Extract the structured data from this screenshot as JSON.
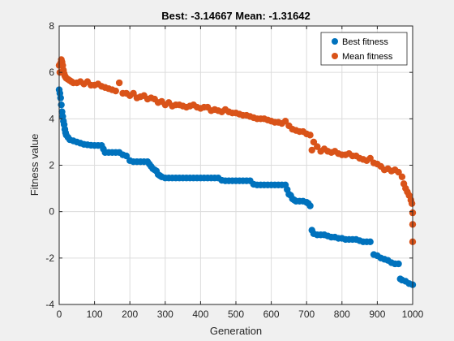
{
  "chart_data": {
    "type": "scatter",
    "title": "Best: -3.14667 Mean: -1.31642",
    "xlabel": "Generation",
    "ylabel": "Fitness value",
    "xlim": [
      0,
      1000
    ],
    "ylim": [
      -4,
      8
    ],
    "xticks": [
      0,
      100,
      200,
      300,
      400,
      500,
      600,
      700,
      800,
      900,
      1000
    ],
    "yticks": [
      -4,
      -2,
      0,
      2,
      4,
      6,
      8
    ],
    "grid": true,
    "legend_position": "top-right",
    "series": [
      {
        "name": "Best fitness",
        "color": "#0072BD",
        "points": [
          [
            0,
            5.25
          ],
          [
            2,
            5.1
          ],
          [
            4,
            4.9
          ],
          [
            6,
            4.6
          ],
          [
            8,
            4.3
          ],
          [
            10,
            4.1
          ],
          [
            12,
            3.9
          ],
          [
            14,
            3.75
          ],
          [
            16,
            3.55
          ],
          [
            18,
            3.4
          ],
          [
            20,
            3.3
          ],
          [
            25,
            3.2
          ],
          [
            30,
            3.1
          ],
          [
            40,
            3.05
          ],
          [
            50,
            3.0
          ],
          [
            60,
            2.95
          ],
          [
            70,
            2.9
          ],
          [
            80,
            2.88
          ],
          [
            90,
            2.86
          ],
          [
            100,
            2.85
          ],
          [
            110,
            2.85
          ],
          [
            120,
            2.85
          ],
          [
            125,
            2.7
          ],
          [
            130,
            2.55
          ],
          [
            140,
            2.55
          ],
          [
            150,
            2.55
          ],
          [
            160,
            2.55
          ],
          [
            170,
            2.55
          ],
          [
            180,
            2.45
          ],
          [
            190,
            2.4
          ],
          [
            200,
            2.2
          ],
          [
            210,
            2.15
          ],
          [
            220,
            2.15
          ],
          [
            230,
            2.15
          ],
          [
            240,
            2.15
          ],
          [
            250,
            2.15
          ],
          [
            255,
            2.05
          ],
          [
            260,
            1.95
          ],
          [
            265,
            1.85
          ],
          [
            270,
            1.8
          ],
          [
            275,
            1.75
          ],
          [
            280,
            1.6
          ],
          [
            285,
            1.55
          ],
          [
            290,
            1.5
          ],
          [
            300,
            1.45
          ],
          [
            310,
            1.45
          ],
          [
            320,
            1.45
          ],
          [
            330,
            1.45
          ],
          [
            340,
            1.45
          ],
          [
            350,
            1.45
          ],
          [
            360,
            1.45
          ],
          [
            370,
            1.45
          ],
          [
            380,
            1.45
          ],
          [
            390,
            1.45
          ],
          [
            400,
            1.45
          ],
          [
            410,
            1.45
          ],
          [
            420,
            1.45
          ],
          [
            430,
            1.45
          ],
          [
            440,
            1.45
          ],
          [
            450,
            1.45
          ],
          [
            460,
            1.35
          ],
          [
            470,
            1.33
          ],
          [
            480,
            1.33
          ],
          [
            490,
            1.33
          ],
          [
            500,
            1.33
          ],
          [
            510,
            1.33
          ],
          [
            520,
            1.33
          ],
          [
            530,
            1.33
          ],
          [
            540,
            1.33
          ],
          [
            550,
            1.18
          ],
          [
            560,
            1.15
          ],
          [
            570,
            1.15
          ],
          [
            580,
            1.15
          ],
          [
            590,
            1.15
          ],
          [
            600,
            1.15
          ],
          [
            610,
            1.15
          ],
          [
            620,
            1.15
          ],
          [
            630,
            1.15
          ],
          [
            640,
            1.15
          ],
          [
            645,
            0.95
          ],
          [
            650,
            0.75
          ],
          [
            655,
            0.7
          ],
          [
            660,
            0.55
          ],
          [
            665,
            0.5
          ],
          [
            670,
            0.45
          ],
          [
            680,
            0.45
          ],
          [
            690,
            0.45
          ],
          [
            700,
            0.4
          ],
          [
            705,
            0.35
          ],
          [
            710,
            0.25
          ],
          [
            715,
            -0.8
          ],
          [
            720,
            -0.95
          ],
          [
            730,
            -1.0
          ],
          [
            740,
            -1.0
          ],
          [
            750,
            -1.0
          ],
          [
            760,
            -1.05
          ],
          [
            770,
            -1.1
          ],
          [
            780,
            -1.1
          ],
          [
            790,
            -1.15
          ],
          [
            800,
            -1.15
          ],
          [
            810,
            -1.2
          ],
          [
            820,
            -1.2
          ],
          [
            830,
            -1.2
          ],
          [
            840,
            -1.2
          ],
          [
            850,
            -1.25
          ],
          [
            860,
            -1.3
          ],
          [
            870,
            -1.3
          ],
          [
            880,
            -1.3
          ],
          [
            890,
            -1.85
          ],
          [
            900,
            -1.9
          ],
          [
            910,
            -2.0
          ],
          [
            920,
            -2.05
          ],
          [
            930,
            -2.1
          ],
          [
            940,
            -2.2
          ],
          [
            950,
            -2.25
          ],
          [
            960,
            -2.25
          ],
          [
            965,
            -2.9
          ],
          [
            970,
            -2.95
          ],
          [
            980,
            -3.0
          ],
          [
            990,
            -3.1
          ],
          [
            1000,
            -3.15
          ]
        ]
      },
      {
        "name": "Mean fitness",
        "color": "#D95319",
        "points": [
          [
            0,
            6.3
          ],
          [
            2,
            6.0
          ],
          [
            4,
            6.4
          ],
          [
            6,
            6.55
          ],
          [
            8,
            6.45
          ],
          [
            10,
            6.3
          ],
          [
            12,
            6.1
          ],
          [
            14,
            5.95
          ],
          [
            16,
            5.85
          ],
          [
            18,
            5.8
          ],
          [
            20,
            5.75
          ],
          [
            25,
            5.7
          ],
          [
            30,
            5.65
          ],
          [
            35,
            5.6
          ],
          [
            40,
            5.55
          ],
          [
            50,
            5.55
          ],
          [
            60,
            5.6
          ],
          [
            70,
            5.5
          ],
          [
            80,
            5.6
          ],
          [
            90,
            5.45
          ],
          [
            100,
            5.45
          ],
          [
            110,
            5.5
          ],
          [
            120,
            5.4
          ],
          [
            130,
            5.35
          ],
          [
            140,
            5.3
          ],
          [
            150,
            5.25
          ],
          [
            160,
            5.2
          ],
          [
            170,
            5.55
          ],
          [
            180,
            5.1
          ],
          [
            190,
            5.1
          ],
          [
            200,
            5.0
          ],
          [
            210,
            5.1
          ],
          [
            220,
            4.9
          ],
          [
            230,
            4.95
          ],
          [
            240,
            5.0
          ],
          [
            250,
            4.85
          ],
          [
            260,
            4.9
          ],
          [
            270,
            4.85
          ],
          [
            280,
            4.7
          ],
          [
            290,
            4.75
          ],
          [
            300,
            4.6
          ],
          [
            310,
            4.7
          ],
          [
            320,
            4.55
          ],
          [
            330,
            4.6
          ],
          [
            340,
            4.6
          ],
          [
            350,
            4.55
          ],
          [
            360,
            4.5
          ],
          [
            370,
            4.55
          ],
          [
            380,
            4.6
          ],
          [
            390,
            4.5
          ],
          [
            400,
            4.45
          ],
          [
            410,
            4.5
          ],
          [
            420,
            4.5
          ],
          [
            430,
            4.35
          ],
          [
            440,
            4.4
          ],
          [
            450,
            4.35
          ],
          [
            460,
            4.3
          ],
          [
            470,
            4.4
          ],
          [
            480,
            4.3
          ],
          [
            490,
            4.25
          ],
          [
            500,
            4.25
          ],
          [
            510,
            4.2
          ],
          [
            520,
            4.15
          ],
          [
            530,
            4.15
          ],
          [
            540,
            4.1
          ],
          [
            550,
            4.05
          ],
          [
            560,
            4.0
          ],
          [
            570,
            4.0
          ],
          [
            580,
            4.0
          ],
          [
            590,
            3.95
          ],
          [
            600,
            3.9
          ],
          [
            610,
            3.85
          ],
          [
            620,
            3.85
          ],
          [
            630,
            3.8
          ],
          [
            640,
            3.9
          ],
          [
            650,
            3.7
          ],
          [
            660,
            3.55
          ],
          [
            670,
            3.5
          ],
          [
            680,
            3.45
          ],
          [
            690,
            3.45
          ],
          [
            700,
            3.35
          ],
          [
            710,
            3.3
          ],
          [
            715,
            2.65
          ],
          [
            720,
            3.0
          ],
          [
            730,
            2.8
          ],
          [
            740,
            2.6
          ],
          [
            750,
            2.7
          ],
          [
            760,
            2.6
          ],
          [
            770,
            2.55
          ],
          [
            780,
            2.6
          ],
          [
            790,
            2.5
          ],
          [
            800,
            2.45
          ],
          [
            810,
            2.45
          ],
          [
            820,
            2.5
          ],
          [
            830,
            2.4
          ],
          [
            840,
            2.4
          ],
          [
            850,
            2.3
          ],
          [
            860,
            2.25
          ],
          [
            870,
            2.2
          ],
          [
            880,
            2.3
          ],
          [
            890,
            2.1
          ],
          [
            900,
            2.05
          ],
          [
            910,
            1.95
          ],
          [
            920,
            1.8
          ],
          [
            930,
            1.85
          ],
          [
            940,
            1.75
          ],
          [
            950,
            1.8
          ],
          [
            960,
            1.7
          ],
          [
            970,
            1.5
          ],
          [
            975,
            1.2
          ],
          [
            980,
            1.0
          ],
          [
            985,
            0.85
          ],
          [
            990,
            0.7
          ],
          [
            995,
            0.5
          ],
          [
            998,
            0.35
          ],
          [
            1000,
            -0.05
          ],
          [
            1000,
            -0.55
          ],
          [
            1000,
            -1.3
          ]
        ]
      }
    ]
  }
}
